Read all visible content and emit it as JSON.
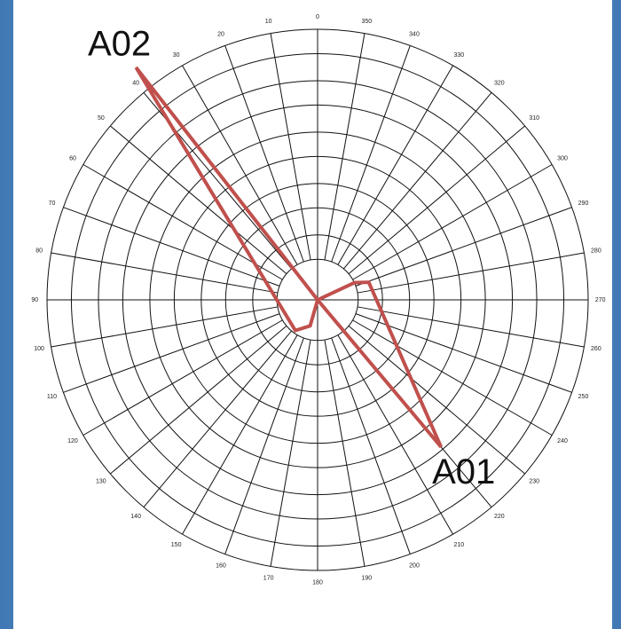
{
  "chart_data": {
    "type": "polar",
    "angle_direction": "counterclockwise",
    "angle_zero": "top",
    "rlim": [
      0,
      10
    ],
    "rticks": [
      1.5,
      2.4,
      3.4,
      4.3,
      5.3,
      6.2,
      7.2,
      8.1,
      9.1,
      10
    ],
    "angleticks": [
      0,
      10,
      20,
      30,
      40,
      50,
      60,
      70,
      80,
      90,
      100,
      110,
      120,
      130,
      140,
      150,
      160,
      170,
      180,
      190,
      200,
      210,
      220,
      230,
      240,
      250,
      260,
      270,
      280,
      290,
      300,
      310,
      320,
      330,
      340,
      350
    ],
    "grid": true,
    "series": [
      {
        "color": "#c0504d",
        "angles": [
          0,
          38,
          144,
          164,
          0,
          295,
          289,
          220,
          0
        ],
        "values": [
          0,
          10.9,
          1.4,
          1.0,
          0,
          1.5,
          2.0,
          7.1,
          0
        ]
      }
    ],
    "annotations": [
      {
        "text": "A02",
        "angle": 38,
        "r": 11.9
      },
      {
        "text": "A01",
        "angle": 220,
        "r": 8.4
      }
    ]
  }
}
